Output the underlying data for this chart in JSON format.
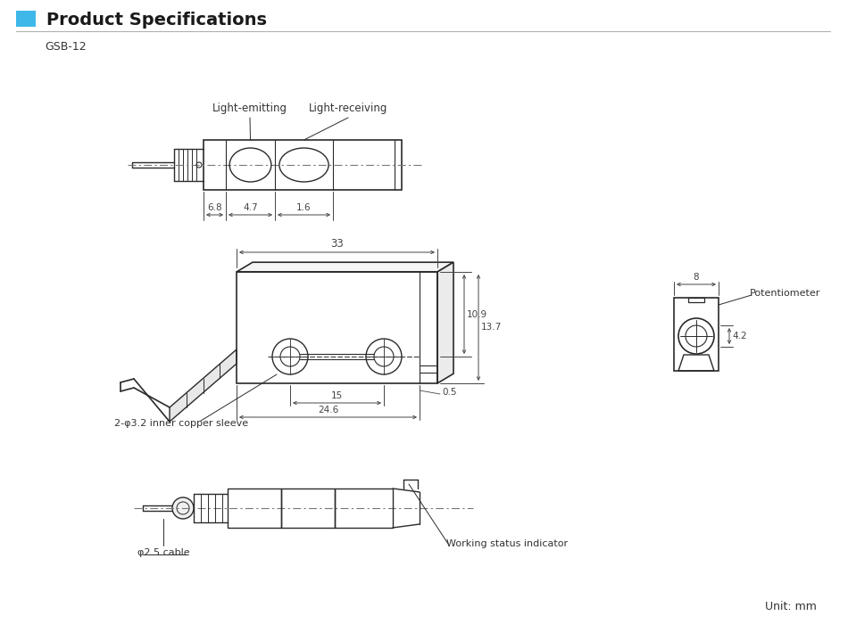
{
  "title": "Product Specifications",
  "model": "GSB-12",
  "unit_text": "Unit: mm",
  "bg_color": "#ffffff",
  "line_color": "#2a2a2a",
  "dim_color": "#444444",
  "blue_color": "#3db8e8",
  "header_line_color": "#b0b0b0",
  "annotations": {
    "light_emitting": "Light-emitting",
    "light_receiving": "Light-receiving",
    "dim_68": "6.8",
    "dim_47": "4.7",
    "dim_16": "1.6",
    "dim_33": "33",
    "dim_109": "10.9",
    "dim_137": "13.7",
    "dim_15": "15",
    "dim_246": "24.6",
    "dim_05": "0.5",
    "dim_8": "8",
    "dim_42": "4.2",
    "label_copper": "2-φ3.2 inner copper sleeve",
    "label_potentiometer": "Potentiometer",
    "label_cable": "φ2.5 cable",
    "label_indicator": "Working status indicator"
  }
}
